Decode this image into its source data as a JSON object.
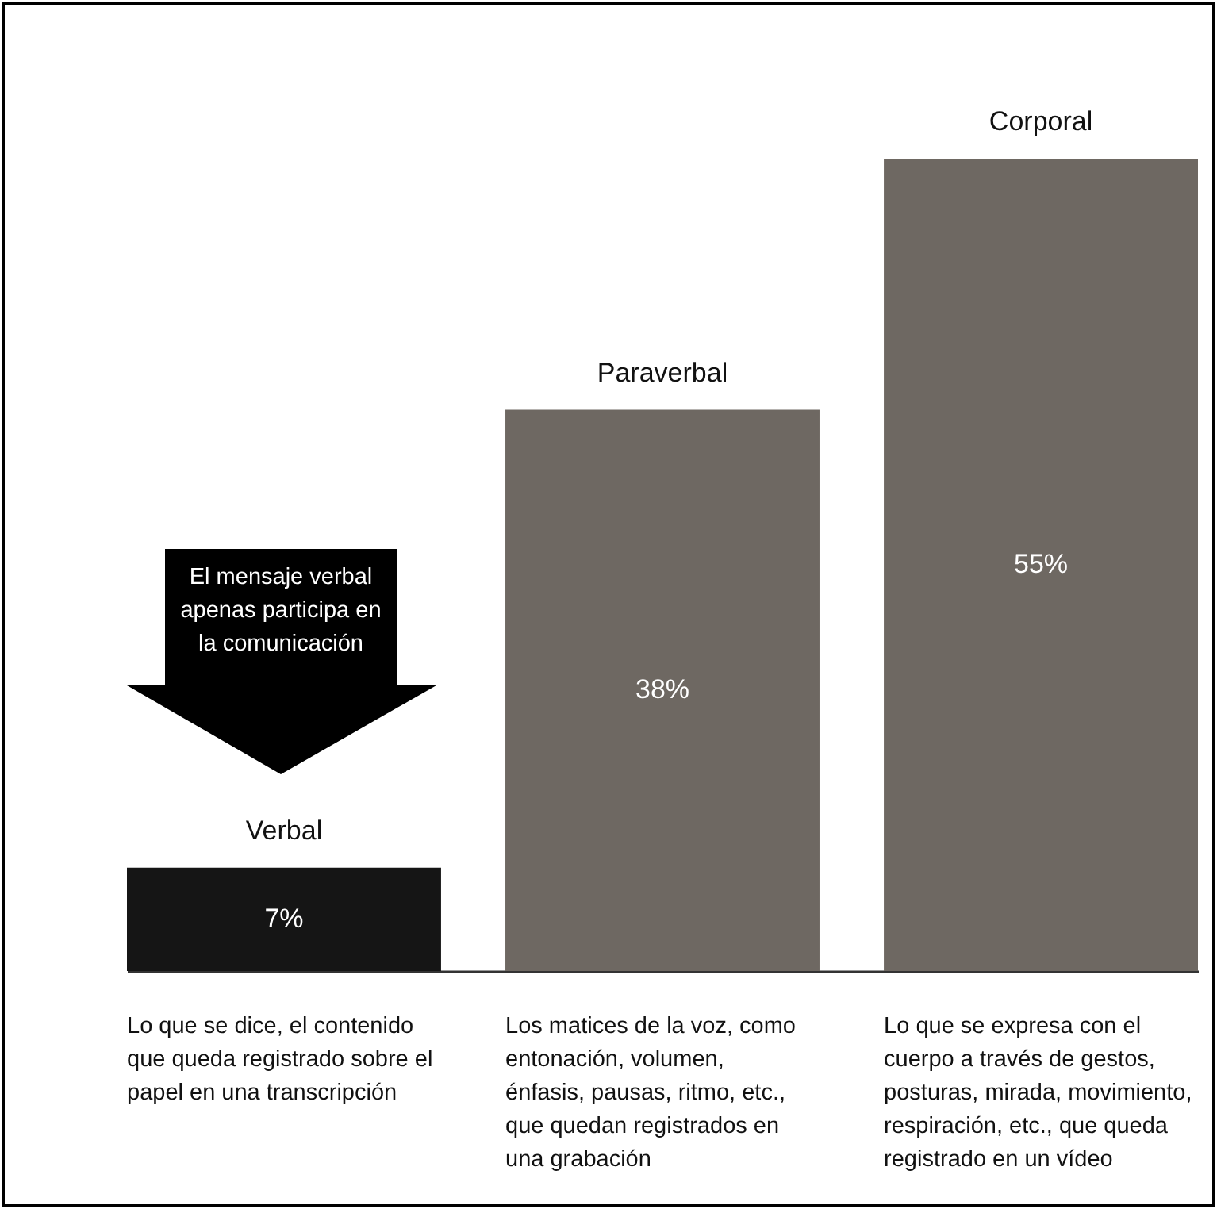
{
  "chart_data": {
    "type": "bar",
    "categories": [
      "Verbal",
      "Paraverbal",
      "Corporal"
    ],
    "values": [
      7,
      38,
      55
    ],
    "colors": [
      "#151515",
      "#6e6862",
      "#6e6862"
    ],
    "value_labels": [
      "7%",
      "38%",
      "55%"
    ],
    "annotations": [
      "El mensaje verbal\napenas participa en\nla comunicación",
      "Lo que se dice, el contenido\nque queda registrado sobre el\npapel en una transcripción",
      "Los matices de la voz, como\nentonación, volumen,\nénfasis, pausas, ritmo, etc.,\nque quedan registrados en\nuna grabación",
      "Lo que se expresa con el\ncuerpo a través de gestos,\nposturas, mirada, movimiento,\nrespiración, etc., que queda\nregistrado en un vídeo"
    ]
  }
}
